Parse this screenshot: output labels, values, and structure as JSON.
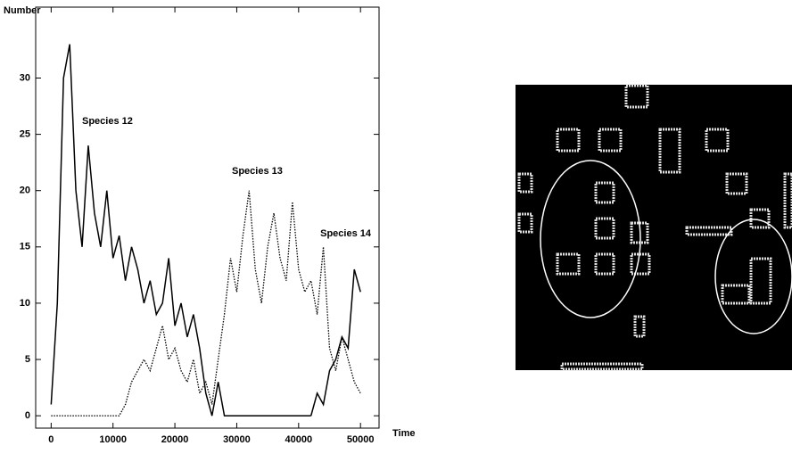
{
  "chart_data": {
    "type": "line",
    "y_label": "Number",
    "x_label": "Time",
    "x": [
      0,
      1000,
      2000,
      3000,
      4000,
      5000,
      6000,
      7000,
      8000,
      9000,
      10000,
      11000,
      12000,
      13000,
      14000,
      15000,
      16000,
      17000,
      18000,
      19000,
      20000,
      21000,
      22000,
      23000,
      24000,
      25000,
      26000,
      27000,
      28000,
      29000,
      30000,
      31000,
      32000,
      33000,
      34000,
      35000,
      36000,
      37000,
      38000,
      39000,
      40000,
      41000,
      42000,
      43000,
      44000,
      45000,
      46000,
      47000,
      48000,
      49000,
      50000
    ],
    "series": [
      {
        "name": "Species 12",
        "color": "#000000",
        "dash": false,
        "values": [
          1,
          10,
          30,
          33,
          20,
          15,
          24,
          18,
          15,
          20,
          14,
          16,
          12,
          15,
          13,
          10,
          12,
          9,
          10,
          14,
          8,
          10,
          7,
          9,
          6,
          2,
          0,
          3,
          0,
          0,
          0,
          0,
          0,
          0,
          0,
          0,
          0,
          0,
          0,
          0,
          0,
          0,
          0,
          null,
          null,
          null,
          null,
          null,
          null,
          null,
          null
        ]
      },
      {
        "name": "Species 13",
        "color": "#000000",
        "dash": true,
        "values": [
          0,
          0,
          0,
          0,
          0,
          0,
          0,
          0,
          0,
          0,
          0,
          0,
          1,
          3,
          4,
          5,
          4,
          6,
          8,
          5,
          6,
          4,
          3,
          5,
          2,
          3,
          1,
          5,
          9,
          14,
          11,
          16,
          20,
          13,
          10,
          15,
          18,
          14,
          12,
          19,
          13,
          11,
          12,
          9,
          15,
          6,
          4,
          7,
          5,
          3,
          2
        ]
      },
      {
        "name": "Species 14",
        "color": "#000000",
        "dash": false,
        "values": [
          null,
          null,
          null,
          null,
          null,
          null,
          null,
          null,
          null,
          null,
          null,
          null,
          null,
          null,
          null,
          null,
          null,
          null,
          null,
          null,
          null,
          null,
          null,
          null,
          null,
          null,
          null,
          null,
          null,
          null,
          null,
          null,
          null,
          null,
          null,
          null,
          null,
          null,
          null,
          null,
          null,
          null,
          0,
          2,
          1,
          4,
          5,
          7,
          6,
          13,
          11
        ]
      }
    ],
    "xlim": [
      -2500,
      53000
    ],
    "ylim": [
      -1.1,
      36.3
    ],
    "xticks": [
      0,
      10000,
      20000,
      30000,
      40000,
      50000
    ],
    "yticks": [
      0,
      5,
      10,
      15,
      20,
      25,
      30
    ]
  }
}
